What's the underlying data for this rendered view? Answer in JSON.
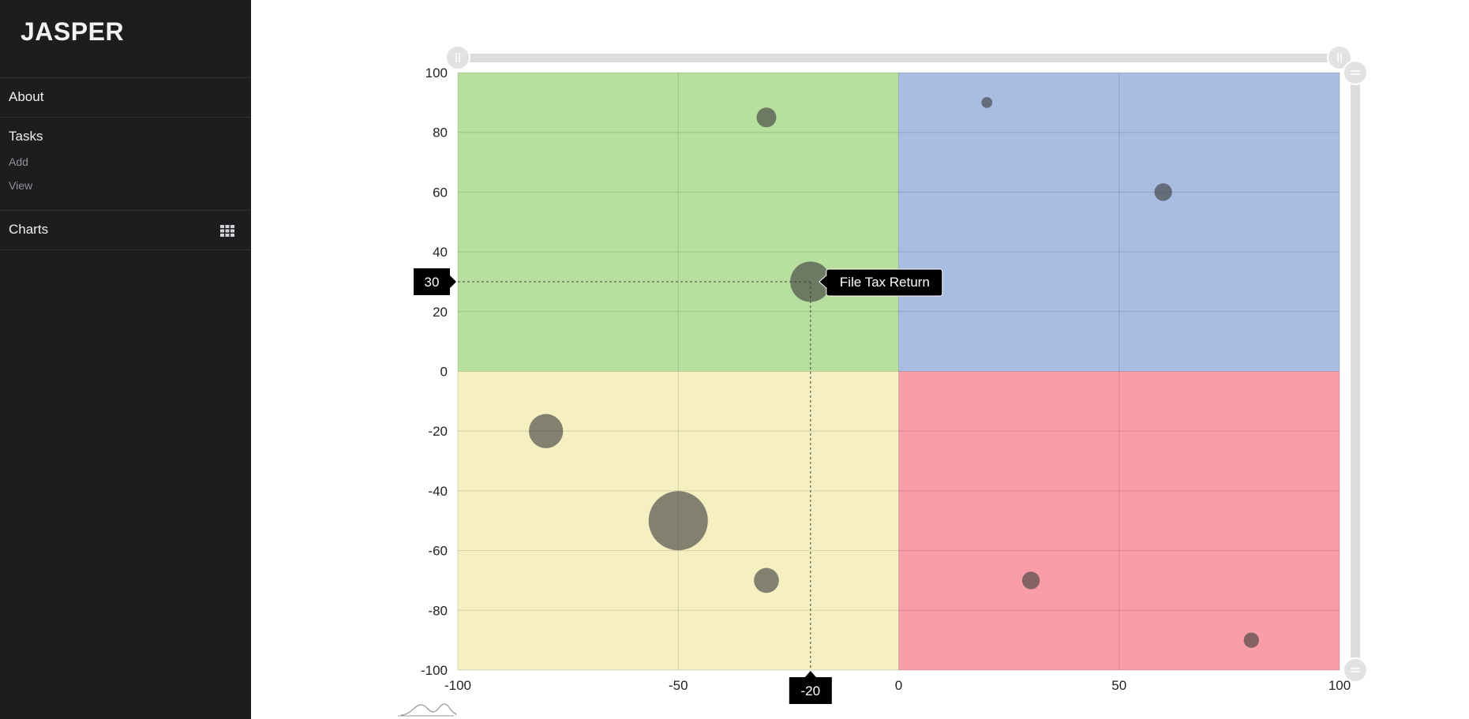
{
  "sidebar": {
    "brand": "JASPER",
    "nav": {
      "about": "About",
      "tasks": "Tasks",
      "tasks_add": "Add",
      "tasks_view": "View",
      "charts": "Charts"
    },
    "charts_icon": "grid-icon"
  },
  "chart_data": {
    "type": "scatter",
    "title": "",
    "xlabel": "",
    "ylabel": "",
    "xlim": [
      -100,
      100
    ],
    "ylim": [
      -100,
      100
    ],
    "x_ticks": [
      -100,
      -50,
      0,
      50,
      100
    ],
    "y_ticks": [
      100,
      80,
      60,
      40,
      20,
      0,
      -20,
      -40,
      -60,
      -80,
      -100
    ],
    "grid": true,
    "quadrant_colors": {
      "top_left": "#b7df9e",
      "top_right": "#a8bde1",
      "bottom_left": "#f5efc1",
      "bottom_right": "#f99da9"
    },
    "points": [
      {
        "x": -30,
        "y": 85,
        "size": 1
      },
      {
        "x": 20,
        "y": 90,
        "size": 0.3
      },
      {
        "x": 60,
        "y": 60,
        "size": 0.8
      },
      {
        "x": -20,
        "y": 30,
        "size": 4.2
      },
      {
        "x": -80,
        "y": -20,
        "size": 3
      },
      {
        "x": -50,
        "y": -50,
        "size": 9
      },
      {
        "x": -30,
        "y": -70,
        "size": 1.6
      },
      {
        "x": 30,
        "y": -70,
        "size": 0.8
      },
      {
        "x": 80,
        "y": -90,
        "size": 0.6
      }
    ],
    "highlight": {
      "x": -20,
      "y": 30,
      "x_label": "-20",
      "y_label": "30",
      "tooltip": "File Tax Return"
    }
  }
}
